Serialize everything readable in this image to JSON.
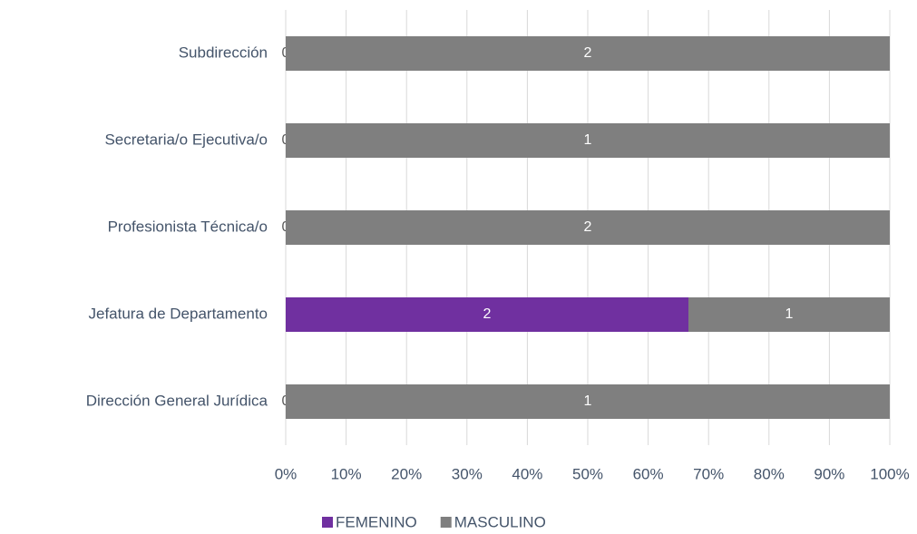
{
  "chart_data": {
    "type": "bar",
    "orientation": "horizontal",
    "stacking": "percent",
    "categories": [
      "Subdirección",
      "Secretaria/o Ejecutiva/o",
      "Profesionista Técnica/o",
      "Jefatura de Departamento",
      "Dirección General Jurídica"
    ],
    "series": [
      {
        "name": "FEMENINO",
        "color": "#7030a0",
        "values": [
          0,
          0,
          0,
          2,
          0
        ]
      },
      {
        "name": "MASCULINO",
        "color": "#7f7f7f",
        "values": [
          2,
          1,
          2,
          1,
          1
        ]
      }
    ],
    "xlim": [
      0,
      100
    ],
    "xticks": [
      {
        "value": 0,
        "label": "0%"
      },
      {
        "value": 10,
        "label": "10%"
      },
      {
        "value": 20,
        "label": "20%"
      },
      {
        "value": 30,
        "label": "30%"
      },
      {
        "value": 40,
        "label": "40%"
      },
      {
        "value": 50,
        "label": "50%"
      },
      {
        "value": 60,
        "label": "60%"
      },
      {
        "value": 70,
        "label": "70%"
      },
      {
        "value": 80,
        "label": "80%"
      },
      {
        "value": 90,
        "label": "90%"
      },
      {
        "value": 100,
        "label": "100%"
      }
    ],
    "grid": true,
    "legend": "bottom"
  }
}
